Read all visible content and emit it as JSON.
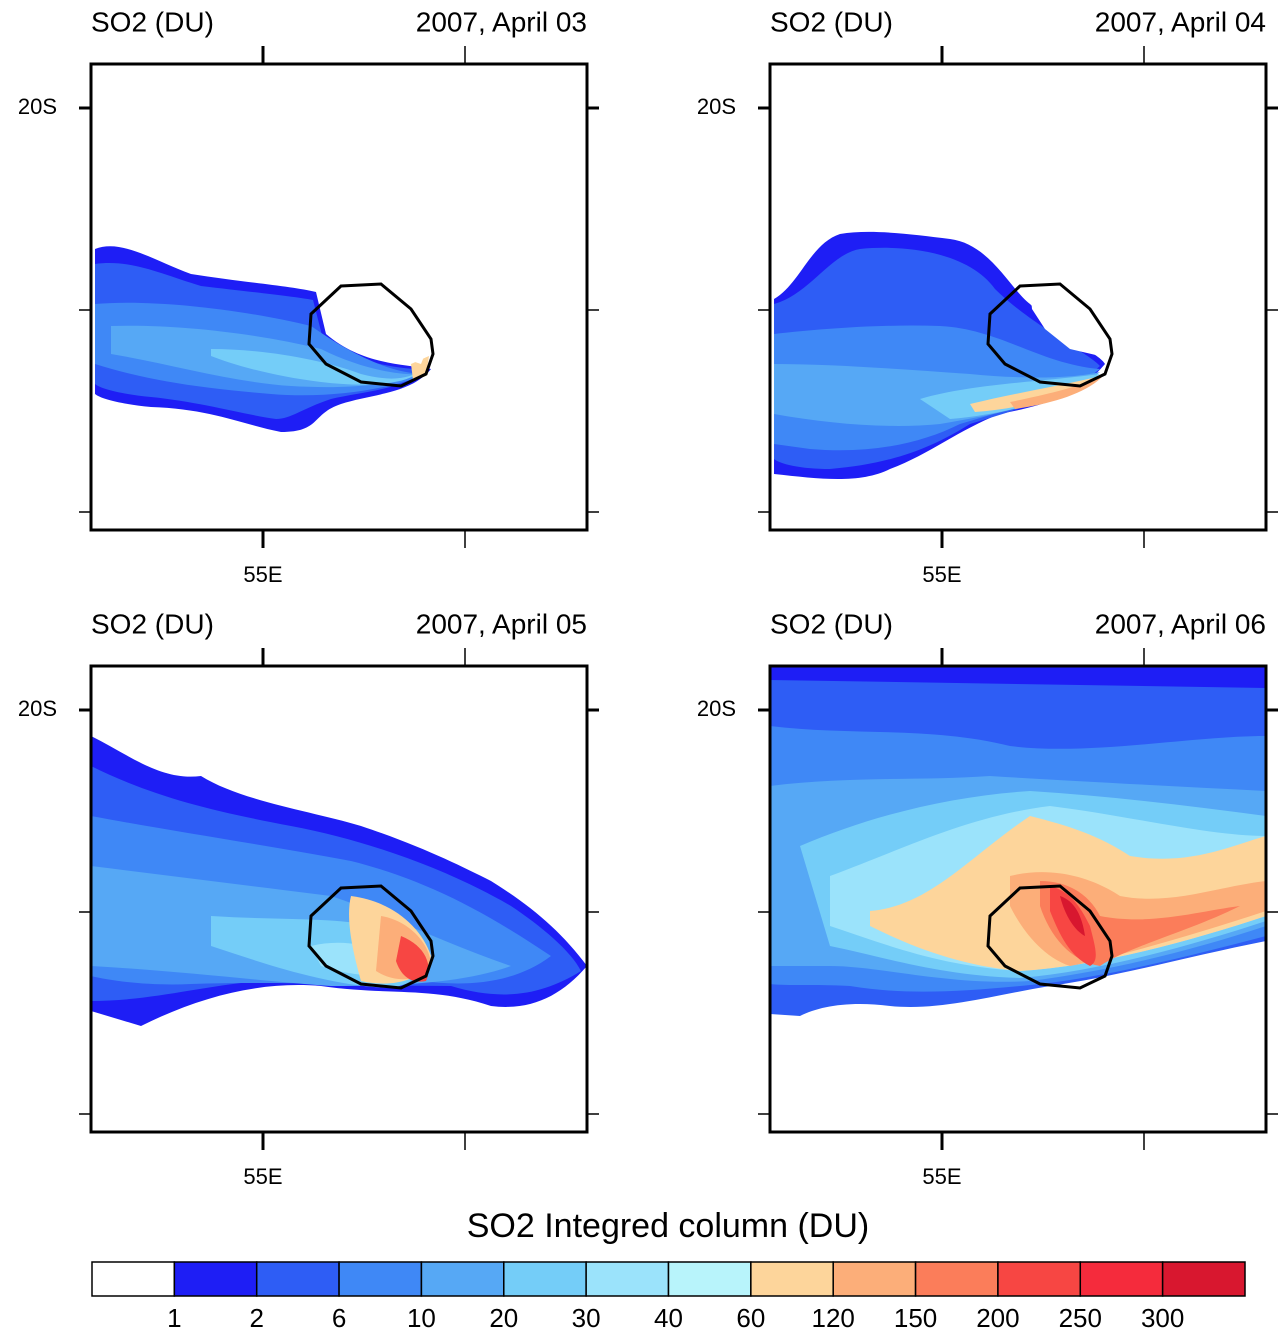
{
  "chart_data": {
    "type": "contour-map",
    "panels": [
      {
        "left_title": "SO2 (DU)",
        "right_title": "2007, April 03",
        "ylabel": "20S",
        "xlabel": "55E"
      },
      {
        "left_title": "SO2 (DU)",
        "right_title": "2007, April 04",
        "ylabel": "20S",
        "xlabel": "55E"
      },
      {
        "left_title": "SO2 (DU)",
        "right_title": "2007, April 05",
        "ylabel": "20S",
        "xlabel": "55E"
      },
      {
        "left_title": "SO2 (DU)",
        "right_title": "2007, April 06",
        "ylabel": "20S",
        "xlabel": "55E"
      }
    ],
    "colorbar": {
      "title": "SO2 Integred column (DU)",
      "levels": [
        1,
        2,
        6,
        10,
        20,
        30,
        40,
        60,
        120,
        150,
        200,
        250,
        300
      ],
      "colors": [
        "#ffffff",
        "#1e1ef5",
        "#2e5df5",
        "#3f88f6",
        "#56a8f5",
        "#74cdf8",
        "#9be3fb",
        "#b8f4fb",
        "#fdd59b",
        "#fcae79",
        "#fb7d5a",
        "#f74643",
        "#f52b3c",
        "#d8172f"
      ]
    }
  }
}
